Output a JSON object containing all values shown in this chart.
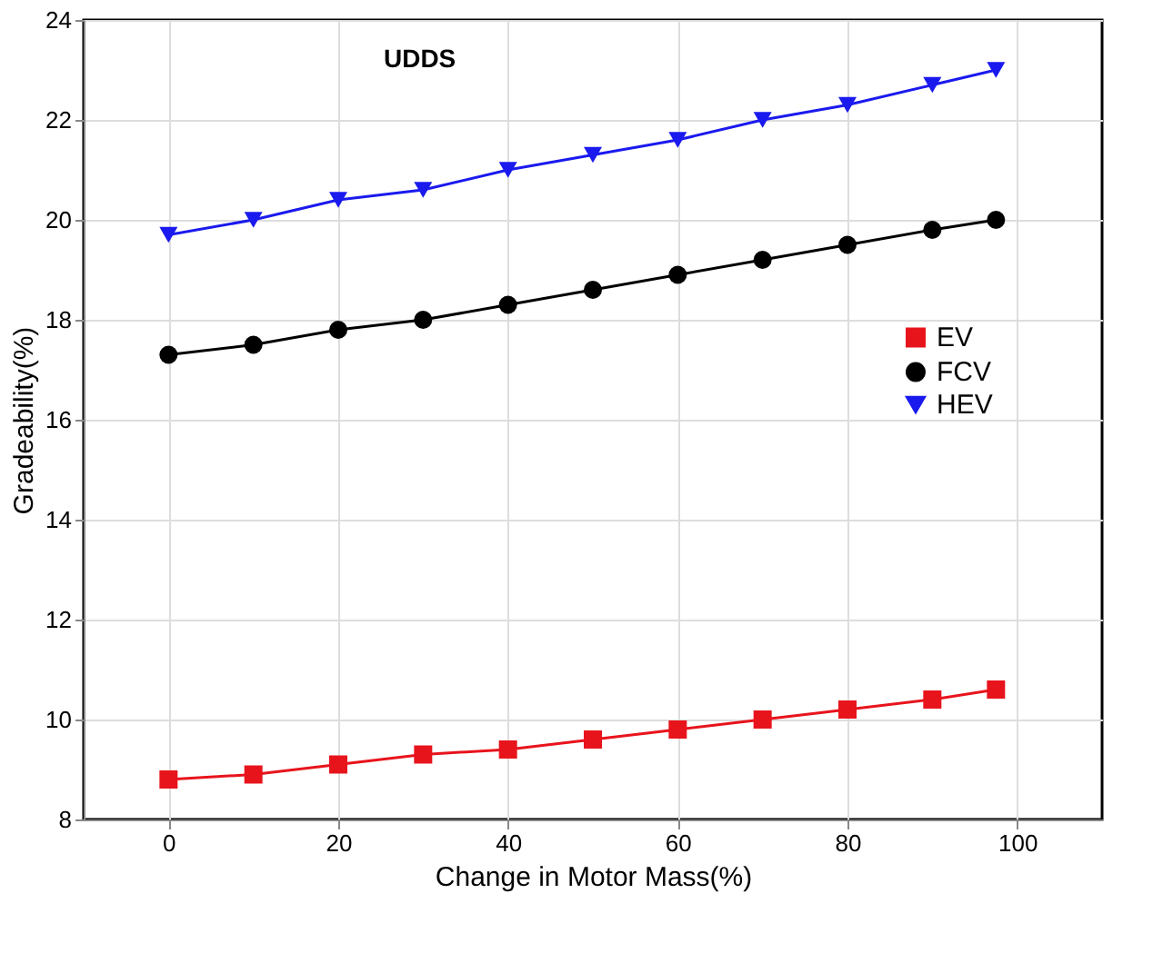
{
  "chart_data": {
    "type": "line",
    "xlabel": "Change in Motor Mass(%)",
    "ylabel": "Gradeability(%)",
    "annotations": [
      "UDDS"
    ],
    "x": [
      0,
      10,
      20,
      30,
      40,
      50,
      60,
      70,
      80,
      90,
      97.5
    ],
    "series": [
      {
        "name": "EV",
        "color": "#e8141c",
        "marker": "square",
        "values": [
          8.8,
          8.9,
          9.1,
          9.3,
          9.4,
          9.6,
          9.8,
          10.0,
          10.2,
          10.4,
          10.6
        ]
      },
      {
        "name": "FCV",
        "color": "#000000",
        "marker": "circle",
        "values": [
          17.3,
          17.5,
          17.8,
          18.0,
          18.3,
          18.6,
          18.9,
          19.2,
          19.5,
          19.8,
          20.0
        ]
      },
      {
        "name": "HEV",
        "color": "#1a1aee",
        "marker": "triangle",
        "values": [
          19.7,
          20.0,
          20.4,
          20.6,
          21.0,
          21.3,
          21.6,
          22.0,
          22.3,
          22.7,
          23.0
        ]
      }
    ],
    "xlim": [
      -10,
      110
    ],
    "xticks": [
      0,
      20,
      40,
      60,
      80,
      100
    ],
    "ylim": [
      8,
      24
    ],
    "yticks": [
      8,
      10,
      12,
      14,
      16,
      18,
      20,
      22,
      24
    ],
    "grid": true,
    "legend": "right",
    "line_style": "solid"
  }
}
